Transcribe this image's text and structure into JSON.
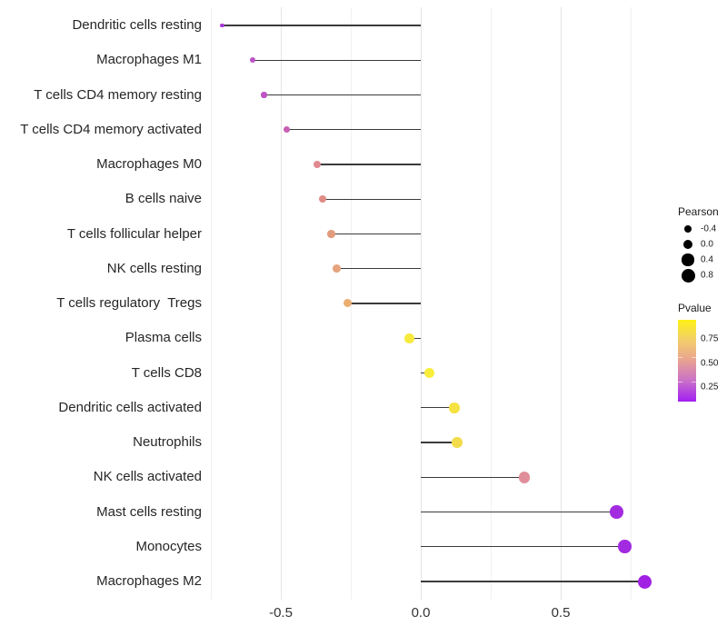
{
  "chart_data": {
    "type": "scatter",
    "variant": "lollipop",
    "title": "",
    "xlabel": "",
    "ylabel": "",
    "x_ticks": [
      -0.5,
      0.0,
      0.5
    ],
    "x_tick_labels": [
      "-0.5",
      "0.0",
      "0.5"
    ],
    "x_minor_ticks": [
      -0.75,
      -0.25,
      0.25,
      0.75
    ],
    "xlim": [
      -0.785,
      0.855
    ],
    "grid": "on",
    "baseline_x": 0.0,
    "points": [
      {
        "label": "Dendritic cells resting",
        "pearson": -0.71,
        "color": "#A73BD8"
      },
      {
        "label": "Macrophages M1",
        "pearson": -0.6,
        "color": "#BB53C5"
      },
      {
        "label": "T cells CD4 memory resting",
        "pearson": -0.56,
        "color": "#BC55C3"
      },
      {
        "label": "T cells CD4 memory activated",
        "pearson": -0.48,
        "color": "#C75FB3"
      },
      {
        "label": "Macrophages M0",
        "pearson": -0.37,
        "color": "#E08A90"
      },
      {
        "label": "B cells naive",
        "pearson": -0.35,
        "color": "#E08B85"
      },
      {
        "label": "T cells follicular helper",
        "pearson": -0.32,
        "color": "#E39B7D"
      },
      {
        "label": "NK cells resting",
        "pearson": -0.3,
        "color": "#E5A47E"
      },
      {
        "label": "T cells regulatory  Tregs",
        "pearson": -0.26,
        "color": "#EBAE71"
      },
      {
        "label": "Plasma cells",
        "pearson": -0.04,
        "color": "#F7EA3D"
      },
      {
        "label": "T cells CD8",
        "pearson": 0.03,
        "color": "#F8ED39"
      },
      {
        "label": "Dendritic cells activated",
        "pearson": 0.12,
        "color": "#F6E243"
      },
      {
        "label": "Neutrophils",
        "pearson": 0.13,
        "color": "#F2DC4B"
      },
      {
        "label": "NK cells activated",
        "pearson": 0.37,
        "color": "#E08E99"
      },
      {
        "label": "Mast cells resting",
        "pearson": 0.7,
        "color": "#A32BE0"
      },
      {
        "label": "Monocytes",
        "pearson": 0.73,
        "color": "#A22BE2"
      },
      {
        "label": "Macrophages M2",
        "pearson": 0.8,
        "color": "#A21FE4"
      }
    ]
  },
  "legends": {
    "size": {
      "title": "Pearson",
      "items": [
        {
          "label": "-0.4",
          "value": -0.4
        },
        {
          "label": "0.0",
          "value": 0.0
        },
        {
          "label": "0.4",
          "value": 0.4
        },
        {
          "label": "0.8",
          "value": 0.8
        }
      ],
      "dot_color": "#000000"
    },
    "color": {
      "title": "Pvalue",
      "ticks": [
        {
          "label": "0.75",
          "value": 0.75
        },
        {
          "label": "0.50",
          "value": 0.5
        },
        {
          "label": "0.25",
          "value": 0.25
        }
      ],
      "gradient_stops": [
        "#FCF115",
        "#F3CE6B",
        "#E8A292",
        "#C96FC9",
        "#A21FF2"
      ],
      "range": [
        0.1,
        0.95
      ]
    }
  },
  "colors": {
    "stem": "#3b3b3b",
    "grid_major": "#e4e4e4",
    "grid_minor": "#f2f2f2",
    "axis_text": "#333333"
  }
}
